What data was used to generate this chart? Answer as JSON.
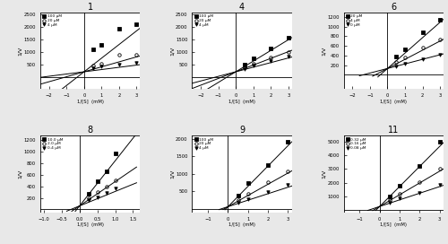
{
  "plots": [
    {
      "title": "1",
      "xlabel": "1/[S]  (mM)",
      "ylabel": "1/V",
      "xlim": [
        -2.5,
        3.2
      ],
      "ylim": [
        -500,
        2600
      ],
      "xticks": [
        -2,
        -1,
        0,
        1,
        2,
        3
      ],
      "yticks": [
        500,
        1000,
        1500,
        2000,
        2500
      ],
      "legend": [
        "100 μM",
        "20 μM",
        "4 μM"
      ],
      "legend_markers": [
        "s",
        "o",
        "v"
      ],
      "lines": [
        {
          "slope": 550,
          "intercept": 200,
          "x0": -2.5,
          "x1": 3.2
        },
        {
          "slope": 200,
          "intercept": 200,
          "x0": -2.5,
          "x1": 3.2
        },
        {
          "slope": 90,
          "intercept": 200,
          "x0": -2.5,
          "x1": 3.2
        }
      ],
      "points": [
        {
          "x": [
            0.5,
            1.0,
            2.0,
            3.0
          ],
          "y": [
            1100,
            1300,
            1950,
            2100
          ]
        },
        {
          "x": [
            0.5,
            1.0,
            2.0,
            3.0
          ],
          "y": [
            450,
            530,
            900,
            900
          ]
        },
        {
          "x": [
            0.5,
            1.0,
            2.0,
            3.0
          ],
          "y": [
            350,
            400,
            500,
            560
          ]
        }
      ]
    },
    {
      "title": "4",
      "xlabel": "1/[S]  (mM)",
      "ylabel": "1/V",
      "xlim": [
        -2.5,
        3.2
      ],
      "ylim": [
        -500,
        2600
      ],
      "xticks": [
        -2,
        -1,
        0,
        1,
        2,
        3
      ],
      "yticks": [
        500,
        1000,
        1500,
        2000,
        2500
      ],
      "legend": [
        "100 μM",
        "20 μM",
        "4 μM"
      ],
      "legend_markers": [
        "s",
        "o",
        "v"
      ],
      "lines": [
        {
          "slope": 430,
          "intercept": 200,
          "x0": -2.5,
          "x1": 3.2
        },
        {
          "slope": 270,
          "intercept": 200,
          "x0": -2.5,
          "x1": 3.2
        },
        {
          "slope": 185,
          "intercept": 200,
          "x0": -2.5,
          "x1": 3.2
        }
      ],
      "points": [
        {
          "x": [
            0.5,
            1.0,
            2.0,
            3.0
          ],
          "y": [
            500,
            730,
            1150,
            1590
          ]
        },
        {
          "x": [
            0.5,
            1.0,
            2.0,
            3.0
          ],
          "y": [
            380,
            510,
            780,
            1000
          ]
        },
        {
          "x": [
            0.5,
            1.0,
            2.0,
            3.0
          ],
          "y": [
            320,
            440,
            640,
            800
          ]
        }
      ]
    },
    {
      "title": "6",
      "xlabel": "1/[S]  (mM)",
      "ylabel": "1/V",
      "xlim": [
        -2.5,
        3.2
      ],
      "ylim": [
        -300,
        1300
      ],
      "xticks": [
        -2,
        -1,
        0,
        1,
        2,
        3
      ],
      "yticks": [
        200,
        400,
        600,
        800,
        1000,
        1200
      ],
      "legend": [
        "20 μM",
        "4 μM",
        "0 μM"
      ],
      "legend_markers": [
        "s",
        "o",
        "v"
      ],
      "lines": [
        {
          "slope": 320,
          "intercept": 130,
          "x0": -0.55,
          "x1": 3.2
        },
        {
          "slope": 190,
          "intercept": 130,
          "x0": -0.85,
          "x1": 3.2
        },
        {
          "slope": 95,
          "intercept": 130,
          "x0": -1.6,
          "x1": 3.2
        }
      ],
      "points": [
        {
          "x": [
            0.5,
            1.0,
            2.0,
            3.0
          ],
          "y": [
            380,
            530,
            880,
            1150
          ]
        },
        {
          "x": [
            0.5,
            1.0,
            2.0,
            3.0
          ],
          "y": [
            260,
            360,
            560,
            740
          ]
        },
        {
          "x": [
            0.5,
            1.0,
            2.0,
            3.0
          ],
          "y": [
            180,
            230,
            320,
            410
          ]
        }
      ]
    },
    {
      "title": "8",
      "xlabel": "1/[S]  (mM)",
      "ylabel": "1/V",
      "xlim": [
        -1.1,
        1.7
      ],
      "ylim": [
        -50,
        1280
      ],
      "xticks": [
        -1.0,
        -0.5,
        0.0,
        0.5,
        1.0,
        1.5
      ],
      "yticks": [
        200,
        400,
        600,
        800,
        1000,
        1200
      ],
      "legend": [
        "10.0 μM",
        "2.0 μM",
        "0.4 μM"
      ],
      "legend_markers": [
        "s",
        "o",
        "v"
      ],
      "lines": [
        {
          "slope": 780,
          "intercept": 60,
          "x0": -0.12,
          "x1": 1.6
        },
        {
          "slope": 420,
          "intercept": 60,
          "x0": -0.22,
          "x1": 1.6
        },
        {
          "slope": 250,
          "intercept": 60,
          "x0": -0.36,
          "x1": 1.6
        }
      ],
      "points": [
        {
          "x": [
            0.25,
            0.5,
            0.75,
            1.0
          ],
          "y": [
            275,
            480,
            660,
            960
          ]
        },
        {
          "x": [
            0.25,
            0.5,
            0.75,
            1.0
          ],
          "y": [
            185,
            295,
            395,
            500
          ]
        },
        {
          "x": [
            0.25,
            0.5,
            0.75,
            1.0
          ],
          "y": [
            155,
            215,
            290,
            365
          ]
        }
      ]
    },
    {
      "title": "9",
      "xlabel": "1/[S]  (mM)",
      "ylabel": "1/V",
      "xlim": [
        -1.8,
        3.2
      ],
      "ylim": [
        -100,
        2100
      ],
      "xticks": [
        -1,
        0,
        1,
        2,
        3
      ],
      "yticks": [
        500,
        1000,
        1500,
        2000
      ],
      "legend": [
        "100 μM",
        "20 μM",
        "4 μM"
      ],
      "legend_markers": [
        "s",
        "o",
        "v"
      ],
      "lines": [
        {
          "slope": 580,
          "intercept": 60,
          "x0": -0.15,
          "x1": 3.2
        },
        {
          "slope": 320,
          "intercept": 60,
          "x0": -0.25,
          "x1": 3.2
        },
        {
          "slope": 185,
          "intercept": 60,
          "x0": -0.45,
          "x1": 3.2
        }
      ],
      "points": [
        {
          "x": [
            0.5,
            1.0,
            2.0,
            3.0
          ],
          "y": [
            390,
            730,
            1260,
            1920
          ]
        },
        {
          "x": [
            0.5,
            1.0,
            2.0,
            3.0
          ],
          "y": [
            250,
            430,
            760,
            1080
          ]
        },
        {
          "x": [
            0.5,
            1.0,
            2.0,
            3.0
          ],
          "y": [
            175,
            270,
            470,
            690
          ]
        }
      ]
    },
    {
      "title": "11",
      "xlabel": "1/[S]  (mM)",
      "ylabel": "1/V",
      "xlim": [
        -1.8,
        3.2
      ],
      "ylim": [
        -200,
        5500
      ],
      "xticks": [
        -1,
        0,
        1,
        2,
        3
      ],
      "yticks": [
        1000,
        2000,
        3000,
        4000,
        5000
      ],
      "legend": [
        "0.32 μM",
        "0.16 μM",
        "0.08 μM"
      ],
      "legend_markers": [
        "s",
        "o",
        "v"
      ],
      "lines": [
        {
          "slope": 1480,
          "intercept": 230,
          "x0": -0.2,
          "x1": 3.2
        },
        {
          "slope": 870,
          "intercept": 230,
          "x0": -0.35,
          "x1": 3.2
        },
        {
          "slope": 490,
          "intercept": 230,
          "x0": -0.6,
          "x1": 3.2
        }
      ],
      "points": [
        {
          "x": [
            0.5,
            1.0,
            2.0,
            3.0
          ],
          "y": [
            1000,
            1800,
            3250,
            5000
          ]
        },
        {
          "x": [
            0.5,
            1.0,
            2.0,
            3.0
          ],
          "y": [
            700,
            1200,
            2050,
            3000
          ]
        },
        {
          "x": [
            0.5,
            1.0,
            2.0,
            3.0
          ],
          "y": [
            530,
            820,
            1270,
            1850
          ]
        }
      ]
    }
  ],
  "fig_bg": "#e8e8e8"
}
